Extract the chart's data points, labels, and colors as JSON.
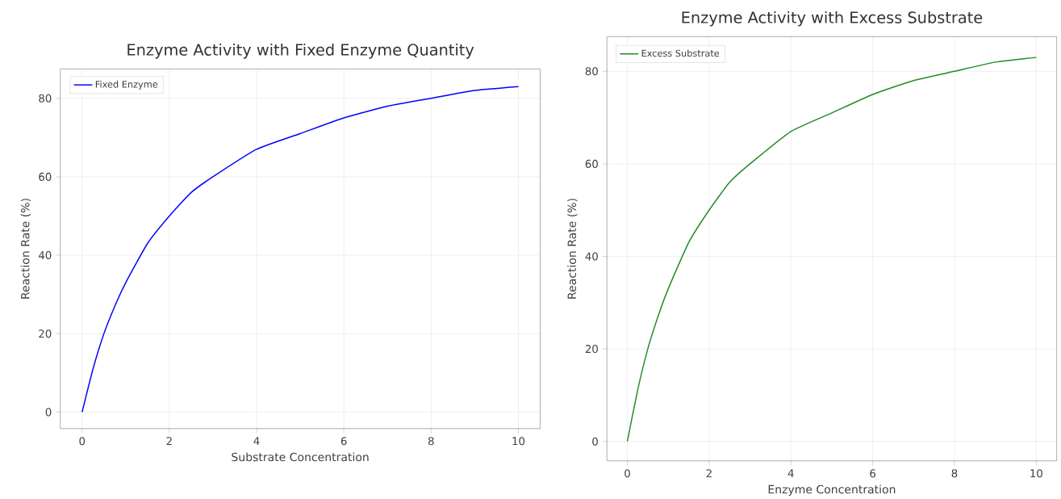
{
  "chart_data": [
    {
      "type": "line",
      "title": "Enzyme Activity with Fixed Enzyme Quantity",
      "xlabel": "Substrate Concentration",
      "ylabel": "Reaction Rate (%)",
      "x": [
        0,
        0.25,
        0.5,
        0.75,
        1,
        1.5,
        2,
        2.5,
        3,
        4,
        5,
        6,
        7,
        8,
        9,
        10
      ],
      "series": [
        {
          "name": "Fixed Enzyme",
          "color": "#0000ff",
          "values": [
            0,
            11,
            20,
            27,
            33,
            43,
            50,
            56,
            60,
            67,
            71,
            75,
            78,
            80,
            82,
            83
          ]
        }
      ],
      "xlim": [
        -0.5,
        10.5
      ],
      "ylim": [
        -4.2,
        87.5
      ],
      "xticks": [
        0,
        2,
        4,
        6,
        8,
        10
      ],
      "yticks": [
        0,
        20,
        40,
        60,
        80
      ],
      "grid": true,
      "legend": "top left"
    },
    {
      "type": "line",
      "title": "Enzyme Activity with Excess Substrate",
      "xlabel": "Enzyme Concentration",
      "ylabel": "Reaction Rate (%)",
      "x": [
        0,
        0.25,
        0.5,
        0.75,
        1,
        1.5,
        2,
        2.5,
        3,
        4,
        5,
        6,
        7,
        8,
        9,
        10
      ],
      "series": [
        {
          "name": "Excess Substrate",
          "color": "#228b22",
          "values": [
            0,
            11,
            20,
            27,
            33,
            43,
            50,
            56,
            60,
            67,
            71,
            75,
            78,
            80,
            82,
            83
          ]
        }
      ],
      "xlim": [
        -0.5,
        10.5
      ],
      "ylim": [
        -4.2,
        87.5
      ],
      "xticks": [
        0,
        2,
        4,
        6,
        8,
        10
      ],
      "yticks": [
        0,
        20,
        40,
        60,
        80
      ],
      "grid": true,
      "legend": "top left"
    }
  ]
}
